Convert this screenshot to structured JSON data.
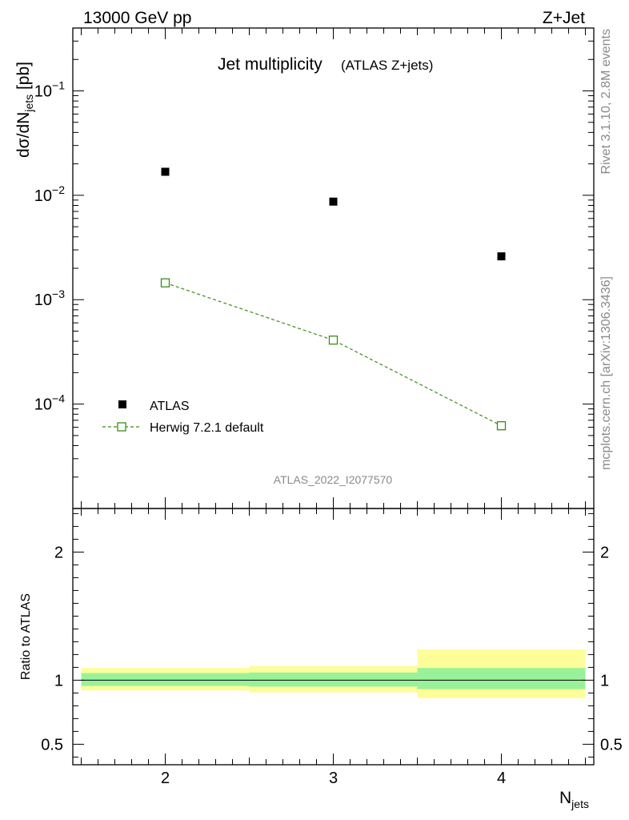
{
  "header": {
    "left": "13000 GeV pp",
    "right": "Z+Jet"
  },
  "title": {
    "main": "Jet multiplicity",
    "sub": "(ATLAS Z+jets)"
  },
  "side_text": {
    "rivet": "Rivet 3.1.10,  2.8M events",
    "mcplots": "mcplots.cern.ch [arXiv:1306.3436]"
  },
  "analysis_id": "ATLAS_2022_I2077570",
  "colors": {
    "data": "#000000",
    "mc": "#3a8c14",
    "band_inner": "#99f299",
    "band_outer": "#fdfd99"
  },
  "chart_data": [
    {
      "type": "scatter",
      "title": "Jet multiplicity (ATLAS Z+jets)",
      "xlabel": "N_jets",
      "ylabel": "dσ/dN_jets [pb]",
      "yscale": "log",
      "xlim": [
        1.45,
        4.55
      ],
      "ylim": [
        1e-05,
        0.4
      ],
      "x_ticks": [
        2,
        3,
        4
      ],
      "y_ticks": [
        0.1,
        0.01,
        0.001,
        0.0001
      ],
      "y_tick_labels": [
        {
          "base": "10",
          "exp": "−1"
        },
        {
          "base": "10",
          "exp": "−2"
        },
        {
          "base": "10",
          "exp": "−3"
        },
        {
          "base": "10",
          "exp": "−4"
        }
      ],
      "legend": {
        "position": "bottom-left",
        "entries": [
          "ATLAS",
          "Herwig 7.2.1 default"
        ]
      },
      "series": [
        {
          "name": "ATLAS",
          "marker": "filled-square",
          "x": [
            2,
            3,
            4
          ],
          "values": [
            0.0168,
            0.0087,
            0.0026
          ]
        },
        {
          "name": "Herwig 7.2.1 default",
          "marker": "open-square",
          "line": "dashed",
          "x": [
            2,
            3,
            4
          ],
          "values": [
            0.00145,
            0.00041,
            6.2e-05
          ]
        }
      ]
    },
    {
      "type": "area",
      "title": "Ratio to ATLAS",
      "xlabel": "N_jets",
      "ylabel": "Ratio to ATLAS",
      "xlim": [
        1.45,
        4.55
      ],
      "ylim": [
        0.34,
        2.34
      ],
      "x_ticks": [
        2,
        3,
        4
      ],
      "x_tick_labels": [
        "2",
        "3",
        "4"
      ],
      "y_ticks": [
        0.5,
        1,
        2
      ],
      "y_tick_labels": [
        "0.5",
        "1",
        "2"
      ],
      "reference_line": 1,
      "bins": [
        {
          "x_low": 1.5,
          "x_high": 2.5,
          "inner": [
            0.955,
            1.055
          ],
          "outer": [
            0.92,
            1.095
          ]
        },
        {
          "x_low": 2.5,
          "x_high": 3.5,
          "inner": [
            0.95,
            1.06
          ],
          "outer": [
            0.905,
            1.11
          ]
        },
        {
          "x_low": 3.5,
          "x_high": 4.5,
          "inner": [
            0.93,
            1.095
          ],
          "outer": [
            0.86,
            1.24
          ]
        }
      ]
    }
  ],
  "axis_labels": {
    "y_main": "dσ/dN",
    "y_main_sub": "jets",
    "y_main_unit": " [pb]",
    "x_main": "N",
    "x_main_sub": "jets",
    "y_ratio": "Ratio to ATLAS"
  }
}
